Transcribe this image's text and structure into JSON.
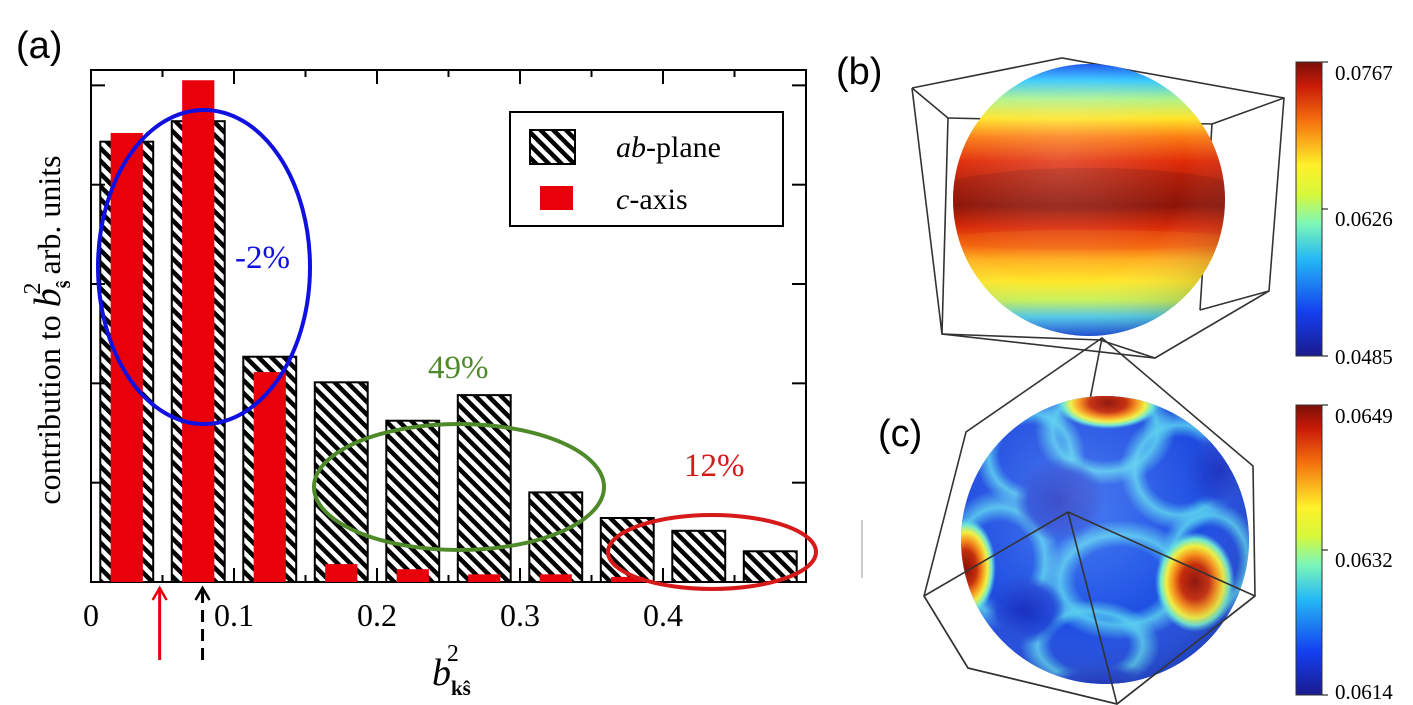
{
  "colors": {
    "ab_plane_stripe": "#000000",
    "c_axis": "#e8000b",
    "circle_blue": "#1010e0",
    "circle_green": "#4e8a2a",
    "circle_red": "#d61a1a",
    "cbar_low": "#1a1a8c",
    "cbar_mid": "#ffff30",
    "cbar_high": "#7a1008"
  },
  "panels": {
    "a": {
      "label": "(a)"
    },
    "b": {
      "label": "(b)",
      "colorbar": {
        "max": "0.0767",
        "mid": "0.0626",
        "min": "0.0485"
      }
    },
    "c": {
      "label": "(c)",
      "colorbar": {
        "max": "0.0649",
        "mid": "0.0632",
        "min": "0.0614"
      }
    }
  },
  "chart_data": {
    "type": "bar",
    "xlabel": "b_kŝ^2",
    "ylabel": "contribution to b_ŝ^2 arb. units",
    "xlim": [
      0,
      0.5
    ],
    "ylim": [
      0,
      1.0
    ],
    "x_ticks": [
      "0",
      "0.1",
      "0.2",
      "0.3",
      "0.4"
    ],
    "x_tick_values": [
      0,
      0.1,
      0.2,
      0.3,
      0.4
    ],
    "bin_centers": [
      0.025,
      0.075,
      0.125,
      0.175,
      0.225,
      0.275,
      0.325,
      0.375,
      0.425,
      0.475
    ],
    "series": [
      {
        "name": "ab-plane",
        "pattern": "diagonal-hatch",
        "values": [
          0.86,
          0.9,
          0.44,
          0.39,
          0.315,
          0.365,
          0.175,
          0.125,
          0.1,
          0.06
        ]
      },
      {
        "name": "c-axis",
        "values": [
          0.877,
          0.98,
          0.41,
          0.035,
          0.025,
          0.015,
          0.015,
          0.01,
          0.0,
          0.0
        ]
      }
    ],
    "legend": {
      "position": "top-right",
      "entries": [
        {
          "prefix": "ab",
          "suffix": "-plane"
        },
        {
          "prefix": "c",
          "suffix": "-axis"
        }
      ]
    },
    "annotations": [
      {
        "text": "-2%",
        "color": "circle_blue"
      },
      {
        "text": "49%",
        "color": "circle_green"
      },
      {
        "text": "12%",
        "color": "circle_red"
      }
    ],
    "arrows": [
      {
        "x": 0.048,
        "style": "solid",
        "color": "c_axis"
      },
      {
        "x": 0.078,
        "style": "dashed",
        "color": "ab_plane_stripe"
      }
    ],
    "axis_label_text": {
      "x_base": "b",
      "x_sub": "kŝ",
      "x_sup": "2",
      "y_prefix": "contribution to ",
      "y_base": "b",
      "y_sub": "ŝ",
      "y_sup": "2",
      "y_suffix": " arb. units"
    }
  }
}
